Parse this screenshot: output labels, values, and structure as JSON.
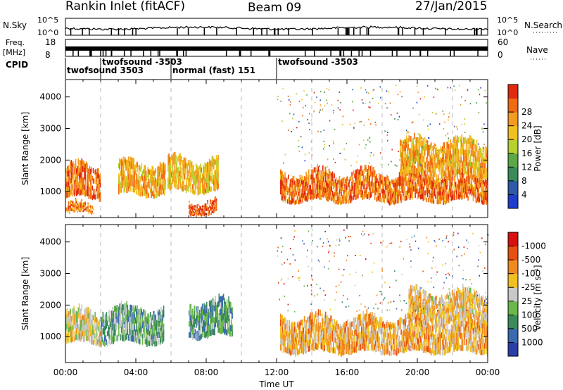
{
  "header": {
    "station": "Rankin Inlet (fitACF)",
    "beam": "Beam 09",
    "date": "27/Jan/2015"
  },
  "panels": {
    "nsky_label": "N.Sky",
    "nsky_ticks": [
      "10^5",
      "10^0"
    ],
    "nsearch_label": "N.Search",
    "freq_label_top": "Freq.",
    "freq_label_unit": "[MHz]",
    "freq_ticks": [
      "18",
      "8"
    ],
    "nave_label": "Nave",
    "nave_ticks": [
      "60",
      "0"
    ],
    "cpid_label": "CPID"
  },
  "cpid_segments": [
    {
      "start_h": 0.0,
      "end_h": 2.0,
      "name": "twofsound 3503",
      "row": 1
    },
    {
      "start_h": 2.0,
      "end_h": 6.0,
      "name": "twofsound -3503",
      "row": 0
    },
    {
      "start_h": 6.0,
      "end_h": 12.0,
      "name": "normal (fast) 151",
      "row": 1
    },
    {
      "start_h": 12.0,
      "end_h": 24.0,
      "name": "twofsound -3503",
      "row": 0
    }
  ],
  "xaxis": {
    "label": "Time UT",
    "ticks": [
      "00:00",
      "04:00",
      "08:00",
      "12:00",
      "16:00",
      "20:00",
      "00:00"
    ],
    "range_hours": [
      0,
      24
    ]
  },
  "yaxis": {
    "label": "Slant Range [km]",
    "ticks": [
      "1000",
      "2000",
      "3000",
      "4000"
    ],
    "range_km": [
      180,
      4550
    ]
  },
  "power_scale": {
    "label": "Power [dB]",
    "ticks": [
      "4",
      "8",
      "12",
      "16",
      "20",
      "24",
      "28"
    ],
    "colors": [
      "#1f3ccc",
      "#2e5aa8",
      "#3b8a5a",
      "#5aa848",
      "#b8d030",
      "#f0c020",
      "#f59a20",
      "#f06a10",
      "#e02a10"
    ]
  },
  "velocity_scale": {
    "label": "Velocity [m s⁻¹]",
    "ticks": [
      "1000",
      "500",
      "100",
      "25",
      "-25",
      "-100",
      "-500",
      "-1000"
    ],
    "colors": [
      "#2a3ea8",
      "#3a6ab0",
      "#3a8a5a",
      "#6ab84a",
      "#c8c8c8",
      "#f0c020",
      "#f08a20",
      "#e85010",
      "#d81010"
    ]
  },
  "chart_data": [
    {
      "type": "heatmap",
      "title": "Power",
      "xlabel": "Time UT",
      "ylabel": "Slant Range [km]",
      "xlim_hours": [
        0,
        24
      ],
      "ylim_km": [
        180,
        4550
      ],
      "colorbar_label": "Power [dB]",
      "colorbar_ticks": [
        4,
        8,
        12,
        16,
        20,
        24,
        28
      ],
      "features": [
        {
          "t_start": 0.0,
          "t_end": 2.0,
          "r_low": 800,
          "r_high": 1800,
          "value_db": 26
        },
        {
          "t_start": 0.0,
          "t_end": 1.6,
          "r_low": 300,
          "r_high": 550,
          "value_db": 24
        },
        {
          "t_start": 3.0,
          "t_end": 5.7,
          "r_low": 900,
          "r_high": 1900,
          "value_db": 22
        },
        {
          "t_start": 5.8,
          "t_end": 8.7,
          "r_low": 1000,
          "r_high": 2000,
          "value_db": 20
        },
        {
          "t_start": 7.0,
          "t_end": 8.6,
          "r_low": 300,
          "r_high": 700,
          "value_db": 28
        },
        {
          "t_start": 12.2,
          "t_end": 24.0,
          "r_low": 700,
          "r_high": 1600,
          "value_db": 26
        },
        {
          "t_start": 19.0,
          "t_end": 24.0,
          "r_low": 1500,
          "r_high": 2600,
          "value_db": 22
        }
      ]
    },
    {
      "type": "heatmap",
      "title": "Velocity",
      "xlabel": "Time UT",
      "ylabel": "Slant Range [km]",
      "xlim_hours": [
        0,
        24
      ],
      "ylim_km": [
        180,
        4550
      ],
      "colorbar_label": "Velocity [m s⁻¹]",
      "colorbar_ticks": [
        1000,
        500,
        100,
        25,
        -25,
        -100,
        -500,
        -1000
      ],
      "features": [
        {
          "t_start": 0.0,
          "t_end": 2.0,
          "r_low": 800,
          "r_high": 1800,
          "value_ms": -100
        },
        {
          "t_start": 2.0,
          "t_end": 5.6,
          "r_low": 800,
          "r_high": 1900,
          "value_ms": 300
        },
        {
          "t_start": 7.0,
          "t_end": 9.5,
          "r_low": 1000,
          "r_high": 2100,
          "value_ms": 400
        },
        {
          "t_start": 12.2,
          "t_end": 24.0,
          "r_low": 500,
          "r_high": 1600,
          "value_ms": -300
        },
        {
          "t_start": 19.5,
          "t_end": 24.0,
          "r_low": 1500,
          "r_high": 2400,
          "value_ms": -200
        }
      ]
    }
  ]
}
